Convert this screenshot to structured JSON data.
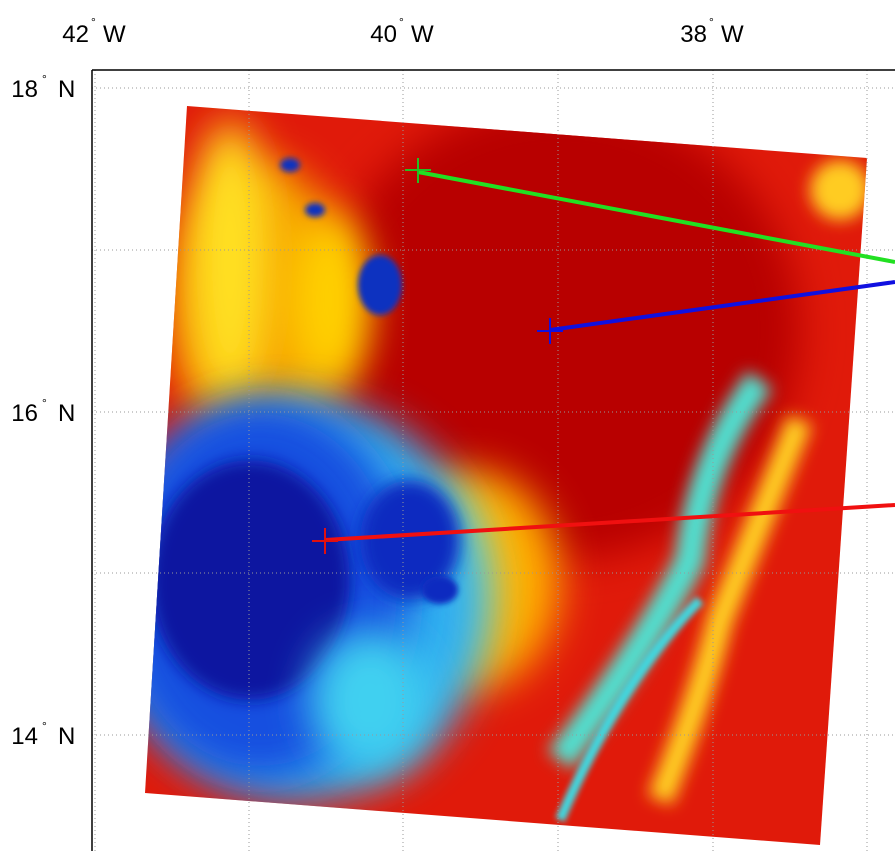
{
  "map": {
    "longitude_labels": [
      {
        "number": "42",
        "degree": "°",
        "hemisphere": "W"
      },
      {
        "number": "40",
        "degree": "°",
        "hemisphere": "W"
      },
      {
        "number": "38",
        "degree": "°",
        "hemisphere": "W"
      }
    ],
    "latitude_labels": [
      {
        "number": "18",
        "degree": "°",
        "hemisphere": "N"
      },
      {
        "number": "16",
        "degree": "°",
        "hemisphere": "N"
      },
      {
        "number": "14",
        "degree": "°",
        "hemisphere": "N"
      }
    ]
  }
}
